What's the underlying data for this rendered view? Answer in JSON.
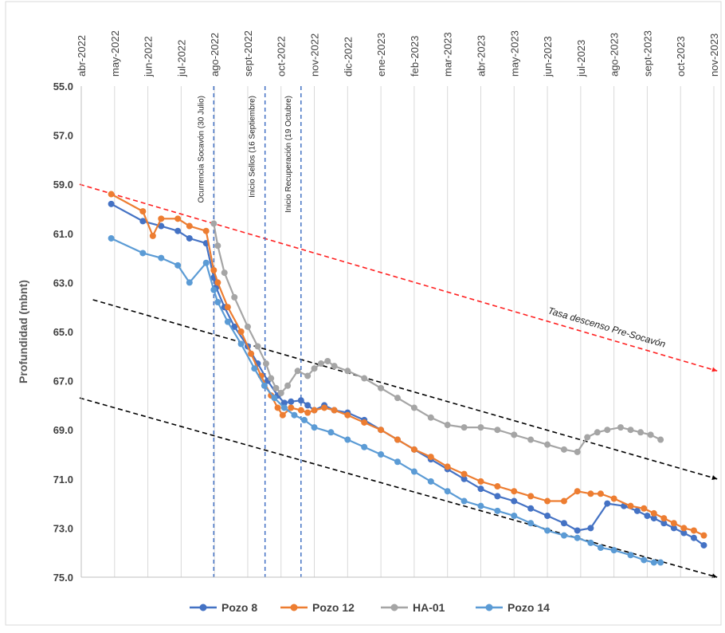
{
  "chart_data": {
    "type": "line",
    "xlabel": "",
    "ylabel": "Profundidad (mbnt)",
    "y_axis": {
      "min": 55,
      "max": 75,
      "inverted": true,
      "ticks": [
        "55.0",
        "57.0",
        "59.0",
        "61.0",
        "63.0",
        "65.0",
        "67.0",
        "69.0",
        "71.0",
        "73.0",
        "75.0"
      ]
    },
    "x_axis": {
      "position": "top",
      "ticks": [
        "abr-2022",
        "may-2022",
        "jun-2022",
        "jul-2022",
        "ago-2022",
        "sept-2022",
        "oct-2022",
        "nov-2022",
        "dic-2022",
        "ene-2023",
        "feb-2023",
        "mar-2023",
        "abr-2023",
        "may-2023",
        "jun-2023",
        "jul-2023",
        "ago-2023",
        "sept-2023",
        "oct-2023",
        "nov-2023"
      ]
    },
    "grid": "vertical",
    "legend_position": "bottom",
    "events": [
      {
        "label": "Ocurrencia Socavón (30 Julio)",
        "x": 3.98
      },
      {
        "label": "Inicio Sellos (16 Septiembre)",
        "x": 5.52
      },
      {
        "label": "Inicio Recuperación (19 Octubre)",
        "x": 6.6
      }
    ],
    "trend_lines": [
      {
        "label": "Tasa descenso Pre-Socavón",
        "color": "#ff2020",
        "points": [
          [
            -0.05,
            59.0
          ],
          [
            19.1,
            66.6
          ]
        ]
      },
      {
        "label": "",
        "color": "#000000",
        "points": [
          [
            0.35,
            63.7
          ],
          [
            19.1,
            71.0
          ]
        ]
      },
      {
        "label": "",
        "color": "#000000",
        "points": [
          [
            -0.05,
            67.7
          ],
          [
            19.1,
            75.0
          ]
        ]
      }
    ],
    "series": [
      {
        "name": "Pozo 8",
        "color": "#4472c4",
        "x": [
          0.9,
          1.85,
          2.4,
          2.9,
          3.25,
          3.75,
          3.98,
          4.05,
          4.3,
          4.6,
          5.0,
          5.3,
          5.6,
          5.9,
          6.1,
          6.3,
          6.6,
          6.8,
          7.0,
          7.3,
          7.6,
          8.0,
          8.5,
          9.0,
          9.5,
          10.0,
          10.5,
          11.0,
          11.5,
          12.0,
          12.5,
          13.0,
          13.5,
          14.0,
          14.5,
          14.9,
          15.3,
          15.8,
          16.3,
          16.7,
          17.0,
          17.2,
          17.5,
          17.8,
          18.1,
          18.4,
          18.7
        ],
        "y": [
          59.8,
          60.5,
          60.7,
          60.9,
          61.2,
          61.4,
          62.8,
          63.2,
          64.0,
          64.8,
          65.6,
          66.3,
          67.0,
          67.6,
          67.9,
          67.85,
          67.8,
          68.0,
          68.2,
          68.0,
          68.2,
          68.3,
          68.6,
          69.0,
          69.4,
          69.8,
          70.2,
          70.6,
          71.0,
          71.4,
          71.7,
          71.9,
          72.2,
          72.5,
          72.8,
          73.1,
          73.0,
          72.0,
          72.1,
          72.3,
          72.5,
          72.6,
          72.8,
          73.0,
          73.2,
          73.4,
          73.7
        ]
      },
      {
        "name": "Pozo 12",
        "color": "#ed7d31",
        "x": [
          0.9,
          1.85,
          2.15,
          2.4,
          2.9,
          3.25,
          3.75,
          3.98,
          4.1,
          4.4,
          4.8,
          5.1,
          5.4,
          5.7,
          5.9,
          6.05,
          6.3,
          6.6,
          6.8,
          7.0,
          7.3,
          7.6,
          8.0,
          8.5,
          9.0,
          9.5,
          10.0,
          10.5,
          11.0,
          11.5,
          12.0,
          12.5,
          13.0,
          13.5,
          14.0,
          14.5,
          14.9,
          15.3,
          15.6,
          16.0,
          16.5,
          16.9,
          17.2,
          17.5,
          17.8,
          18.1,
          18.4,
          18.7
        ],
        "y": [
          59.4,
          60.1,
          61.1,
          60.4,
          60.4,
          60.7,
          60.9,
          62.5,
          63.0,
          64.0,
          65.0,
          65.9,
          66.8,
          67.6,
          68.1,
          68.4,
          68.1,
          68.2,
          68.3,
          68.2,
          68.1,
          68.2,
          68.4,
          68.7,
          69.0,
          69.4,
          69.8,
          70.1,
          70.5,
          70.8,
          71.1,
          71.3,
          71.5,
          71.7,
          71.9,
          71.9,
          71.5,
          71.6,
          71.6,
          71.8,
          72.1,
          72.2,
          72.4,
          72.6,
          72.8,
          73.0,
          73.1,
          73.3
        ]
      },
      {
        "name": "HA-01",
        "color": "#a5a5a5",
        "x": [
          3.98,
          4.1,
          4.3,
          4.6,
          5.0,
          5.3,
          5.55,
          5.7,
          5.85,
          6.0,
          6.2,
          6.5,
          6.8,
          7.0,
          7.2,
          7.4,
          7.6,
          8.0,
          8.5,
          9.0,
          9.5,
          10.0,
          10.5,
          11.0,
          11.5,
          12.0,
          12.5,
          13.0,
          13.5,
          14.0,
          14.5,
          14.9,
          15.2,
          15.5,
          15.8,
          16.2,
          16.5,
          16.8,
          17.1,
          17.4
        ],
        "y": [
          60.6,
          61.5,
          62.6,
          63.6,
          64.8,
          65.6,
          66.3,
          66.9,
          67.3,
          67.5,
          67.2,
          66.6,
          66.8,
          66.5,
          66.3,
          66.2,
          66.4,
          66.6,
          66.9,
          67.3,
          67.7,
          68.1,
          68.5,
          68.8,
          68.9,
          68.9,
          69.0,
          69.2,
          69.4,
          69.6,
          69.8,
          69.9,
          69.3,
          69.1,
          69.0,
          68.9,
          69.0,
          69.1,
          69.2,
          69.4
        ]
      },
      {
        "name": "Pozo 14",
        "color": "#5b9bd5",
        "x": [
          0.9,
          1.85,
          2.4,
          2.9,
          3.25,
          3.75,
          3.98,
          4.1,
          4.4,
          4.8,
          5.2,
          5.5,
          5.8,
          6.1,
          6.4,
          6.7,
          7.0,
          7.5,
          8.0,
          8.5,
          9.0,
          9.5,
          10.0,
          10.5,
          11.0,
          11.5,
          12.0,
          12.5,
          13.0,
          13.5,
          14.0,
          14.5,
          14.9,
          15.3,
          15.6,
          16.0,
          16.5,
          16.9,
          17.2,
          17.4
        ],
        "y": [
          61.2,
          61.8,
          62.0,
          62.3,
          63.0,
          62.2,
          63.3,
          63.8,
          64.6,
          65.5,
          66.5,
          67.2,
          67.7,
          68.1,
          68.4,
          68.6,
          68.9,
          69.1,
          69.4,
          69.7,
          70.0,
          70.3,
          70.7,
          71.1,
          71.5,
          71.9,
          72.1,
          72.3,
          72.5,
          72.8,
          73.1,
          73.3,
          73.4,
          73.6,
          73.8,
          73.9,
          74.1,
          74.3,
          74.4,
          74.4
        ]
      }
    ]
  }
}
